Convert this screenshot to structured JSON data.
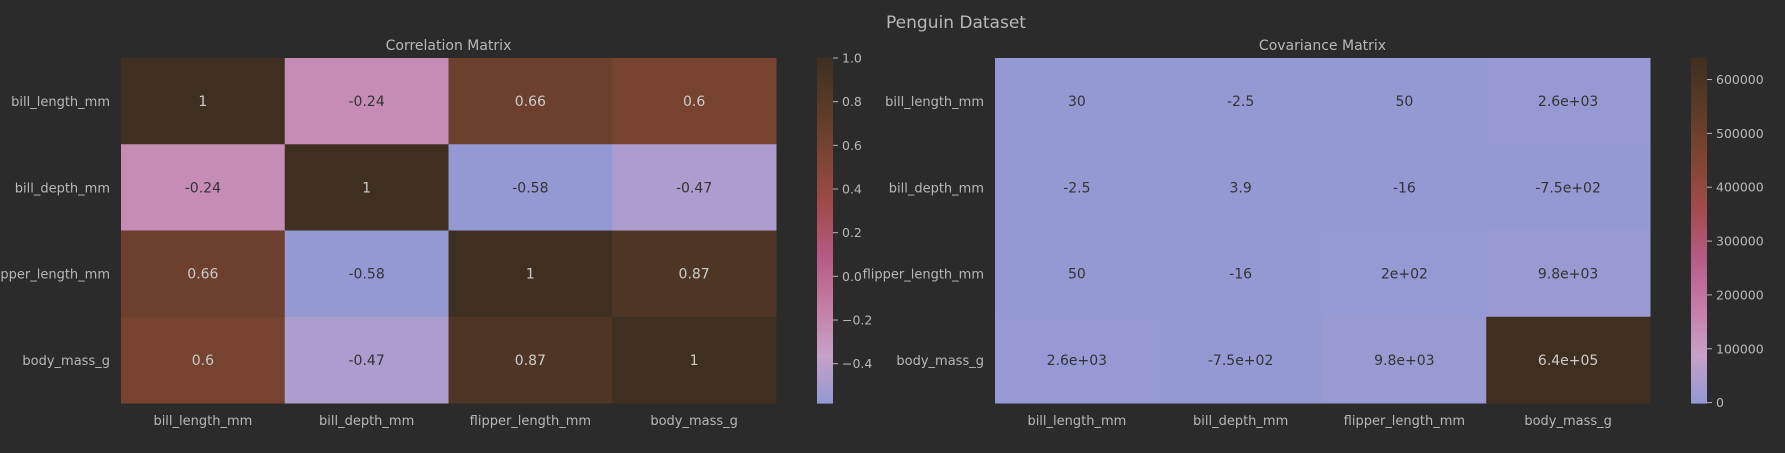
{
  "suptitle": "Penguin Dataset",
  "chart_data": [
    {
      "type": "heatmap",
      "title": "Correlation Matrix",
      "rows": [
        "bill_length_mm",
        "bill_depth_mm",
        "flipper_length_mm",
        "body_mass_g"
      ],
      "cols": [
        "bill_length_mm",
        "bill_depth_mm",
        "flipper_length_mm",
        "body_mass_g"
      ],
      "values": [
        [
          1.0,
          -0.24,
          0.66,
          0.6
        ],
        [
          -0.24,
          1.0,
          -0.58,
          -0.47
        ],
        [
          0.66,
          -0.58,
          1.0,
          0.87
        ],
        [
          0.6,
          -0.47,
          0.87,
          1.0
        ]
      ],
      "annotations": [
        [
          "1",
          "-0.24",
          "0.66",
          "0.6"
        ],
        [
          "-0.24",
          "1",
          "-0.58",
          "-0.47"
        ],
        [
          "0.66",
          "-0.58",
          "1",
          "0.87"
        ],
        [
          "0.6",
          "-0.47",
          "0.87",
          "1"
        ]
      ],
      "colorbar": {
        "vmin": -0.58,
        "vmax": 1.0,
        "ticks": [
          1.0,
          0.8,
          0.6,
          0.4,
          0.2,
          0.0,
          -0.2,
          -0.4
        ],
        "tick_labels": [
          "1.0",
          "0.8",
          "0.6",
          "0.4",
          "0.2",
          "0.0",
          "−0.2",
          "−0.4"
        ]
      }
    },
    {
      "type": "heatmap",
      "title": "Covariance Matrix",
      "rows": [
        "bill_length_mm",
        "bill_depth_mm",
        "flipper_length_mm",
        "body_mass_g"
      ],
      "cols": [
        "bill_length_mm",
        "bill_depth_mm",
        "flipper_length_mm",
        "body_mass_g"
      ],
      "values": [
        [
          30,
          -2.5,
          50,
          2600
        ],
        [
          -2.5,
          3.9,
          -16,
          -750
        ],
        [
          50,
          -16,
          200,
          9800
        ],
        [
          2600,
          -750,
          9800,
          640000
        ]
      ],
      "annotations": [
        [
          "30",
          "-2.5",
          "50",
          "2.6e+03"
        ],
        [
          "-2.5",
          "3.9",
          "-16",
          "-7.5e+02"
        ],
        [
          "50",
          "-16",
          "2e+02",
          "9.8e+03"
        ],
        [
          "2.6e+03",
          "-7.5e+02",
          "9.8e+03",
          "6.4e+05"
        ]
      ],
      "colorbar": {
        "vmin": -750,
        "vmax": 640000,
        "ticks": [
          600000,
          500000,
          400000,
          300000,
          200000,
          100000,
          0
        ],
        "tick_labels": [
          "600000",
          "500000",
          "400000",
          "300000",
          "200000",
          "100000",
          "0"
        ]
      }
    }
  ],
  "colormap": [
    "#9499d4",
    "#c7a1c8",
    "#c47aa5",
    "#b55a84",
    "#a24a4a",
    "#7d4532",
    "#5a3b27",
    "#3f2f21"
  ],
  "colors": {
    "background": "#2b2b2b",
    "text": "#b8b8b8",
    "light_cell_text": "#333333",
    "dark_cell_text": "#cccccc"
  }
}
